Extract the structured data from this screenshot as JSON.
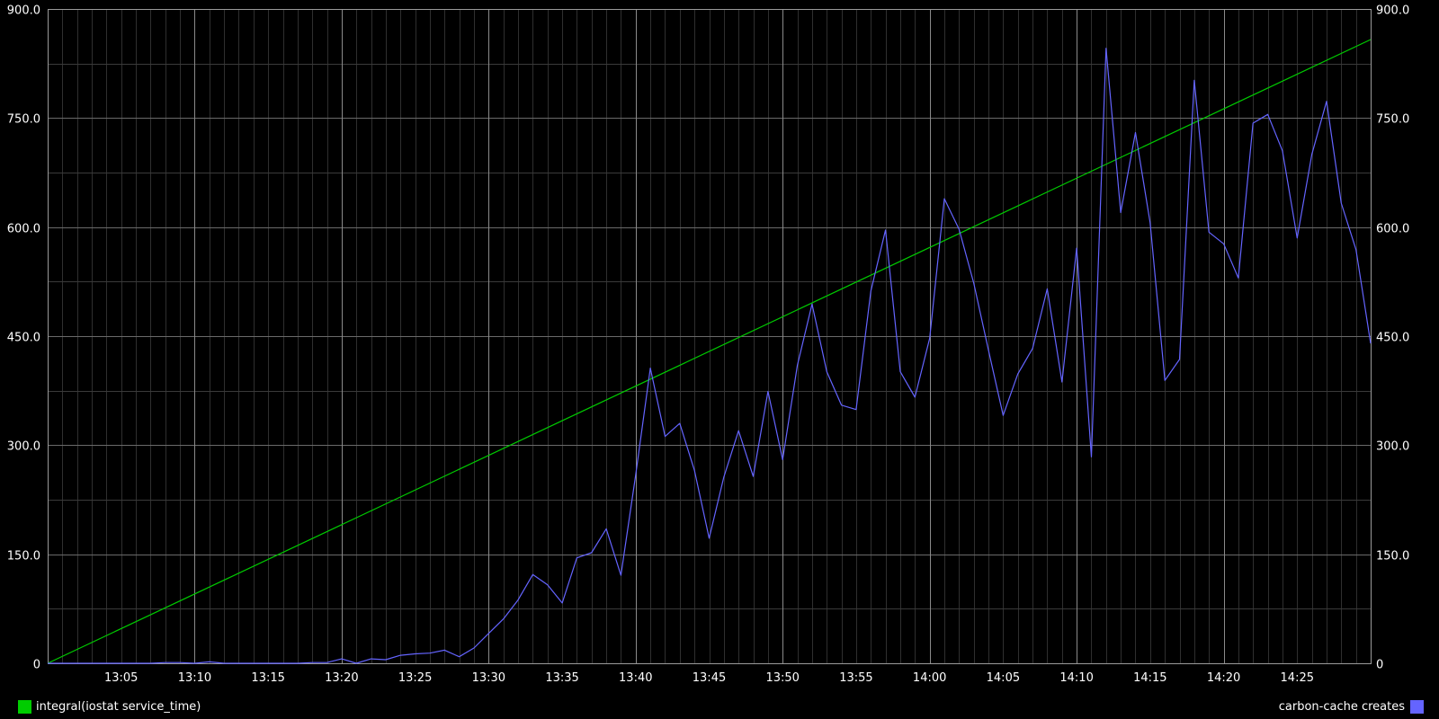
{
  "chart_data": {
    "type": "line",
    "title": "",
    "xlabel": "",
    "ylabel": "",
    "background": "#000000",
    "axis_color": "#ffffff",
    "grid": true,
    "ylim": [
      0,
      900
    ],
    "y_ticks": [
      0,
      150,
      300,
      450,
      600,
      750,
      900
    ],
    "y_tick_labels": [
      "0",
      "150.0",
      "300.0",
      "450.0",
      "600.0",
      "750.0",
      "900.0"
    ],
    "x_start": "13:00",
    "x_end": "14:30",
    "x_tick_labels": [
      "13:05",
      "13:10",
      "13:15",
      "13:20",
      "13:25",
      "13:30",
      "13:35",
      "13:40",
      "13:45",
      "13:50",
      "13:55",
      "14:00",
      "14:05",
      "14:10",
      "14:15",
      "14:20",
      "14:25"
    ],
    "legend": [
      {
        "label": "integral(iostat service_time)",
        "color": "#00cc00",
        "position": "bottom-left"
      },
      {
        "label": "carbon-cache creates",
        "color": "#6464ff",
        "position": "bottom-right"
      }
    ],
    "series": [
      {
        "name": "integral(iostat service_time)",
        "color": "#00cc00",
        "axis": "left",
        "x": [
          "13:00",
          "14:30"
        ],
        "values": [
          0,
          858
        ]
      },
      {
        "name": "carbon-cache creates",
        "color": "#6464ff",
        "axis": "right",
        "x": [
          "13:00",
          "13:01",
          "13:02",
          "13:03",
          "13:04",
          "13:05",
          "13:06",
          "13:07",
          "13:08",
          "13:09",
          "13:10",
          "13:11",
          "13:12",
          "13:13",
          "13:14",
          "13:15",
          "13:16",
          "13:17",
          "13:18",
          "13:19",
          "13:20",
          "13:21",
          "13:22",
          "13:23",
          "13:24",
          "13:25",
          "13:26",
          "13:27",
          "13:28",
          "13:29",
          "13:30",
          "13:31",
          "13:32",
          "13:33",
          "13:34",
          "13:35",
          "13:36",
          "13:37",
          "13:38",
          "13:39",
          "13:40",
          "13:41",
          "13:42",
          "13:43",
          "13:44",
          "13:45",
          "13:46",
          "13:47",
          "13:48",
          "13:49",
          "13:50",
          "13:51",
          "13:52",
          "13:53",
          "13:54",
          "13:55",
          "13:56",
          "13:57",
          "13:58",
          "13:59",
          "14:00",
          "14:01",
          "14:02",
          "14:03",
          "14:04",
          "14:05",
          "14:06",
          "14:07",
          "14:08",
          "14:09",
          "14:10",
          "14:11",
          "14:12",
          "14:13",
          "14:14",
          "14:15",
          "14:16",
          "14:17",
          "14:18",
          "14:19",
          "14:20",
          "14:21",
          "14:22",
          "14:23",
          "14:24",
          "14:25",
          "14:26",
          "14:27",
          "14:28",
          "14:29",
          "14:30"
        ],
        "values": [
          0,
          0,
          0,
          0,
          0,
          0,
          0,
          0,
          1,
          1,
          0,
          2,
          0,
          0,
          0,
          0,
          0,
          0,
          1,
          1,
          6,
          0,
          6,
          5,
          11,
          13,
          14,
          18,
          9,
          21,
          41,
          61,
          87,
          122,
          108,
          83,
          145,
          152,
          185,
          121,
          259,
          406,
          312,
          330,
          265,
          172,
          256,
          320,
          257,
          374,
          280,
          410,
          494,
          401,
          355,
          349,
          512,
          596,
          401,
          366,
          447,
          639,
          597,
          523,
          431,
          341,
          398,
          433,
          515,
          387,
          571,
          284,
          846,
          620,
          730,
          606,
          389,
          418,
          802,
          593,
          577,
          530,
          743,
          755,
          705,
          585,
          700,
          773,
          633,
          569,
          440
        ]
      }
    ]
  }
}
